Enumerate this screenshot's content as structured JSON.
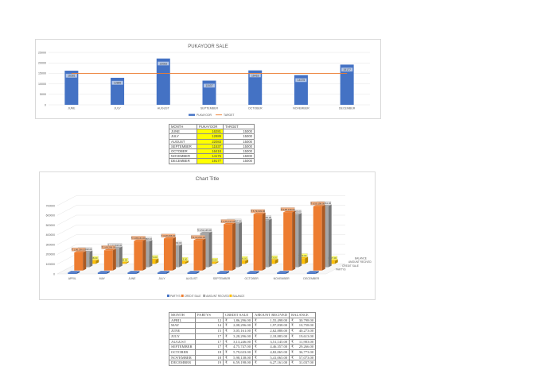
{
  "chart1": {
    "title": "PUKAYOOR SALE",
    "type": "bar",
    "categories": [
      "JUNE",
      "JULY",
      "AUGUST",
      "SEPTEMBER",
      "OCTOBER",
      "NOVEMBER",
      "DECEMBER"
    ],
    "series": [
      {
        "name": "PUKAYOOR",
        "values": [
          16281,
          12889,
          22083,
          11537,
          16418,
          14175,
          19177
        ],
        "color": "#4472c4"
      },
      {
        "name": "TARGET",
        "values": [
          15000,
          15000,
          15000,
          15000,
          15000,
          15000,
          15000
        ],
        "color": "#ed7d31"
      }
    ],
    "ylim": [
      0,
      25000
    ],
    "yticks": [
      "0",
      "5000",
      "10000",
      "15000",
      "20000",
      "25000"
    ]
  },
  "table1": {
    "headers": [
      "MONTH",
      "PUKAYOOR",
      "TARGET"
    ],
    "rows": [
      [
        "JUNE",
        "16281",
        "15000"
      ],
      [
        "JULY",
        "12889",
        "15000"
      ],
      [
        "AUGUST",
        "22083",
        "15000"
      ],
      [
        "SEPTEMBER",
        "11537",
        "15000"
      ],
      [
        "OCTOBER",
        "16418",
        "15000"
      ],
      [
        "NOVEMBER",
        "14175",
        "15000"
      ],
      [
        "DECEMBER",
        "19177",
        "15000"
      ]
    ]
  },
  "chart2": {
    "title": "Chart Title",
    "type": "bar",
    "categories": [
      "APRIL",
      "MAY",
      "JUNE",
      "JULY",
      "AUGUST",
      "SEPTEMBER",
      "OCTOBER",
      "NOVEMBER",
      "DECEMBER"
    ],
    "yticks": [
      "0",
      "100000",
      "200000",
      "300000",
      "400000",
      "500000",
      "600000",
      "700000"
    ],
    "ylim": [
      0,
      700000
    ],
    "series": [
      {
        "name": "PARTYS",
        "values": [
          12,
          14,
          15,
          17,
          17,
          17,
          18,
          18,
          19
        ],
        "color": "#4472c4"
      },
      {
        "name": "CREDIT SALE",
        "values": [
          186296,
          208296,
          305161,
          328296,
          313246,
          475747,
          579633,
          598138,
          659198
        ],
        "color": "#ed7d31",
        "labels": [
          "₹ 1,86,296.00",
          "₹ 2,08,296.00",
          "₹ 3,05,161.00",
          "₹ 3,28,296.00",
          "₹ 3,13,246.00",
          "₹ 4,75,747.00",
          "₹ 5,79,633.00",
          "₹ 5,98,138.00",
          "₹ 6,59,198.00"
        ]
      },
      {
        "name": "AMOUNT RECIVED",
        "values": [
          155498,
          197838,
          262888,
          218883,
          351145,
          446357,
          482065,
          541065,
          627161
        ],
        "color": "#a5a5a5",
        "labels": [
          "₹ 1,55,498.00",
          "₹ 1,97,838.00",
          "₹ 2,62,888.00",
          "₹ 2,18,883.00",
          "₹ 3,51,145.00",
          "₹ 4,46,357.00",
          "₹ 4,82,065.00",
          "₹ 5,41,065.00",
          "₹ 6,27,161.00"
        ]
      },
      {
        "name": "BALANCE",
        "values": [
          30798,
          10758,
          40273,
          19613,
          11903,
          29266,
          36773,
          57073,
          31037
        ],
        "color": "#ffc000",
        "labels": [
          "₹ 30,798.00",
          "₹ 10,758.00",
          "₹ 40,273.00",
          "₹ 19,613.00",
          "₹ 11,903.00",
          "₹ 29,266.00",
          "₹ 36,773.00",
          "₹ 57,073.00",
          "₹ 31,037.00"
        ]
      }
    ],
    "depth_labels": [
      "BALANCE",
      "AMOUNT RECIVED",
      "CREDIT SALE",
      "PARTYS"
    ]
  },
  "table2": {
    "headers": [
      "MONTH",
      "PARTYS",
      "CREDIT SALE",
      "AMOUNT RECIVED",
      "BALANCE"
    ],
    "currency": "₹",
    "rows": [
      [
        "APRIL",
        "12",
        "1,86,296.00",
        "1,55,498.00",
        "30,798.00"
      ],
      [
        "MAY",
        "14",
        "2,08,296.00",
        "1,97,838.00",
        "10,758.00"
      ],
      [
        "JUNE",
        "15",
        "3,05,161.00",
        "2,62,888.00",
        "40,273.00"
      ],
      [
        "JULY",
        "17",
        "3,28,296.00",
        "2,18,883.00",
        "19,613.00"
      ],
      [
        "AUGUST",
        "17",
        "3,13,246.00",
        "3,51,145.00",
        "11,903.00"
      ],
      [
        "SEPTEMBER",
        "17",
        "4,75,747.00",
        "4,46,357.00",
        "29,266.00"
      ],
      [
        "OCTOBER",
        "18",
        "5,79,633.00",
        "4,82,065.00",
        "36,773.00"
      ],
      [
        "NOVEMBER",
        "18",
        "5,98,138.00",
        "5,41,065.00",
        "57,073.00"
      ],
      [
        "DECEMBER",
        "19",
        "6,59,198.00",
        "6,27,161.00",
        "31,037.00"
      ]
    ]
  }
}
